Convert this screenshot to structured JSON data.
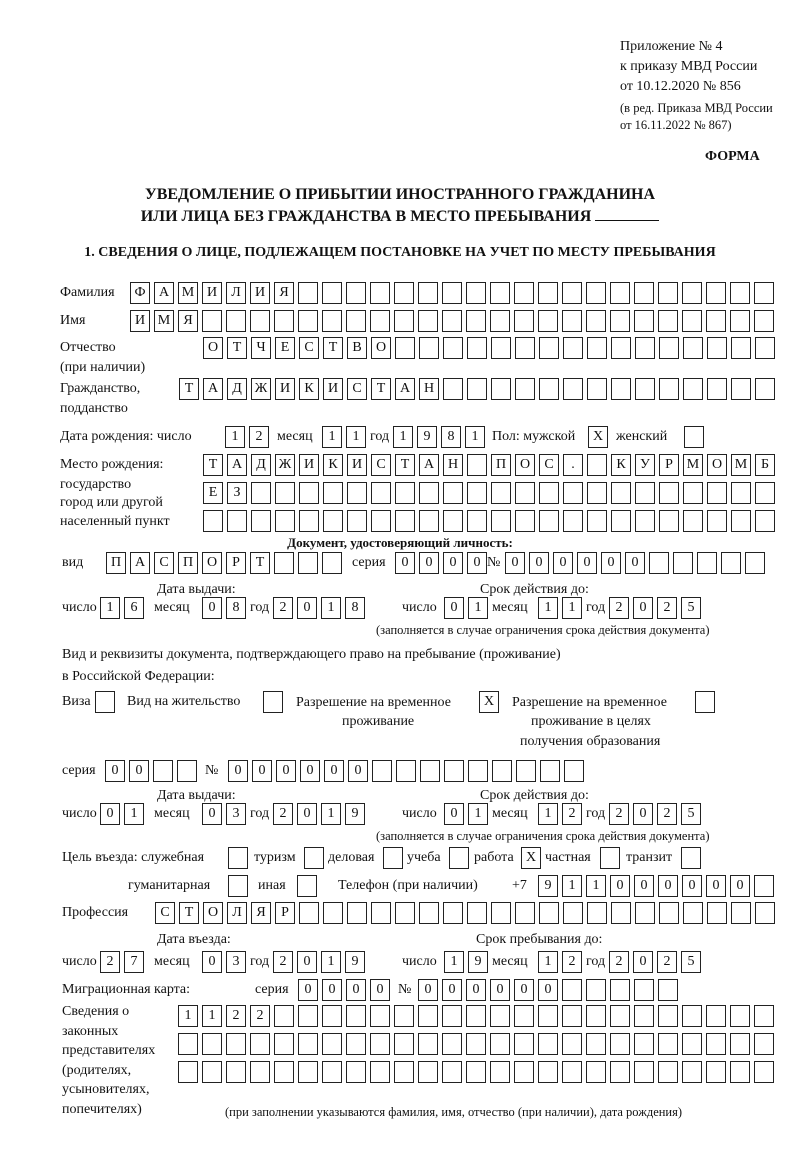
{
  "header": {
    "appendix_lines": [
      "Приложение № 4",
      "к приказу МВД России",
      "от 10.12.2020 № 856",
      "(в ред. Приказа МВД России",
      "от 16.11.2022 № 867)"
    ],
    "form_label": "ФОРМА",
    "title_line1": "УВЕДОМЛЕНИЕ О ПРИБЫТИИ ИНОСТРАННОГО ГРАЖДАНИНА",
    "title_line2": "ИЛИ ЛИЦА БЕЗ ГРАЖДАНСТВА В МЕСТО ПРЕБЫВАНИЯ",
    "section1_title": "1. СВЕДЕНИЯ О ЛИЦЕ, ПОДЛЕЖАЩЕМ ПОСТАНОВКЕ НА УЧЕТ ПО МЕСТУ ПРЕБЫВАНИЯ"
  },
  "person": {
    "surname": {
      "label": "Фамилия",
      "value": "ФАМИЛИЯ"
    },
    "name": {
      "label": "Имя",
      "value": "ИМЯ"
    },
    "patronymic": {
      "label": "Отчество",
      "label2": "(при наличии)",
      "value": "ОТЧЕСТВО"
    },
    "citizenship": {
      "label": "Гражданство,",
      "label2": "подданство",
      "value": "ТАДЖИКИСТАН"
    },
    "birth_date": {
      "label": "Дата рождения:  число",
      "day": "12",
      "month_label": "месяц",
      "month": "11",
      "year_label": "год",
      "year": "1981"
    },
    "sex": {
      "label": "Пол: мужской",
      "male": "X",
      "female_label": "женский",
      "female": ""
    },
    "birthplace": {
      "label_lines": [
        "Место рождения:",
        "государство",
        "город или другой",
        "населенный пункт"
      ],
      "rows": [
        "ТАДЖИКИСТАН ПОС. КУРМОМБ",
        "ЕЗ",
        ""
      ]
    }
  },
  "id_document": {
    "heading": "Документ, удостоверяющий личность:",
    "type_label": "вид",
    "type": "ПАСПОРТ",
    "series_label": "серия",
    "series": "0000",
    "number_label": "№",
    "number": "000000",
    "issue_label": "Дата выдачи:",
    "valid_label": "Срок действия до:",
    "day_label": "число",
    "month_label": "месяц",
    "year_label": "год",
    "issue": {
      "day": "16",
      "month": "08",
      "year": "2018"
    },
    "valid": {
      "day": "01",
      "month": "11",
      "year": "2025"
    },
    "note": "(заполняется в случае ограничения срока действия документа)"
  },
  "stay_document": {
    "heading_line1": "Вид и реквизиты документа, подтверждающего право на пребывание (проживание)",
    "heading_line2": "в Российской Федерации:",
    "visa_label": "Виза",
    "visa": "",
    "residence_label": "Вид на жительство",
    "residence": "",
    "temp_label1": "Разрешение на временное",
    "temp_label2": "проживание",
    "temp": "X",
    "edu_label1": "Разрешение на временное",
    "edu_label2": "проживание в целях",
    "edu_label3": "получения образования",
    "edu": "",
    "series_label": "серия",
    "series": "00",
    "number_label": "№",
    "number": "000000",
    "issue_label": "Дата выдачи:",
    "valid_label": "Срок действия до:",
    "issue": {
      "day": "01",
      "month": "03",
      "year": "2019"
    },
    "valid": {
      "day": "01",
      "month": "12",
      "year": "2025"
    },
    "note": "(заполняется в случае ограничения срока действия документа)"
  },
  "purpose": {
    "label": "Цель въезда: служебная",
    "service": "",
    "tourism_label": "туризм",
    "tourism": "",
    "business_label": "деловая",
    "business": "",
    "study_label": "учеба",
    "study": "",
    "work_label": "работа",
    "work": "X",
    "private_label": "частная",
    "private": "",
    "transit_label": "транзит",
    "transit": "",
    "humanitarian_label": "гуманитарная",
    "humanitarian": "",
    "other_label": "иная",
    "other": ""
  },
  "phone": {
    "label": "Телефон (при наличии)",
    "prefix": "+7",
    "value": "911000000"
  },
  "profession": {
    "label": "Профессия",
    "value": "СТОЛЯР"
  },
  "entry": {
    "entry_label": "Дата въезда:",
    "stay_label": "Срок пребывания до:",
    "entry_date": {
      "day": "27",
      "month": "03",
      "year": "2019"
    },
    "stay_until": {
      "day": "19",
      "month": "12",
      "year": "2025"
    }
  },
  "migration_card": {
    "label": "Миграционная карта:",
    "series_label": "серия",
    "series": "0000",
    "number_label": "№",
    "number": "000000"
  },
  "representatives": {
    "label_lines": [
      "Сведения о",
      "законных",
      "представителях",
      "(родителях,",
      "усыновителях,",
      "попечителях)"
    ],
    "rows": [
      "1122",
      "",
      ""
    ],
    "note": "(при заполнении указываются фамилия, имя, отчество (при наличии), дата рождения)"
  }
}
